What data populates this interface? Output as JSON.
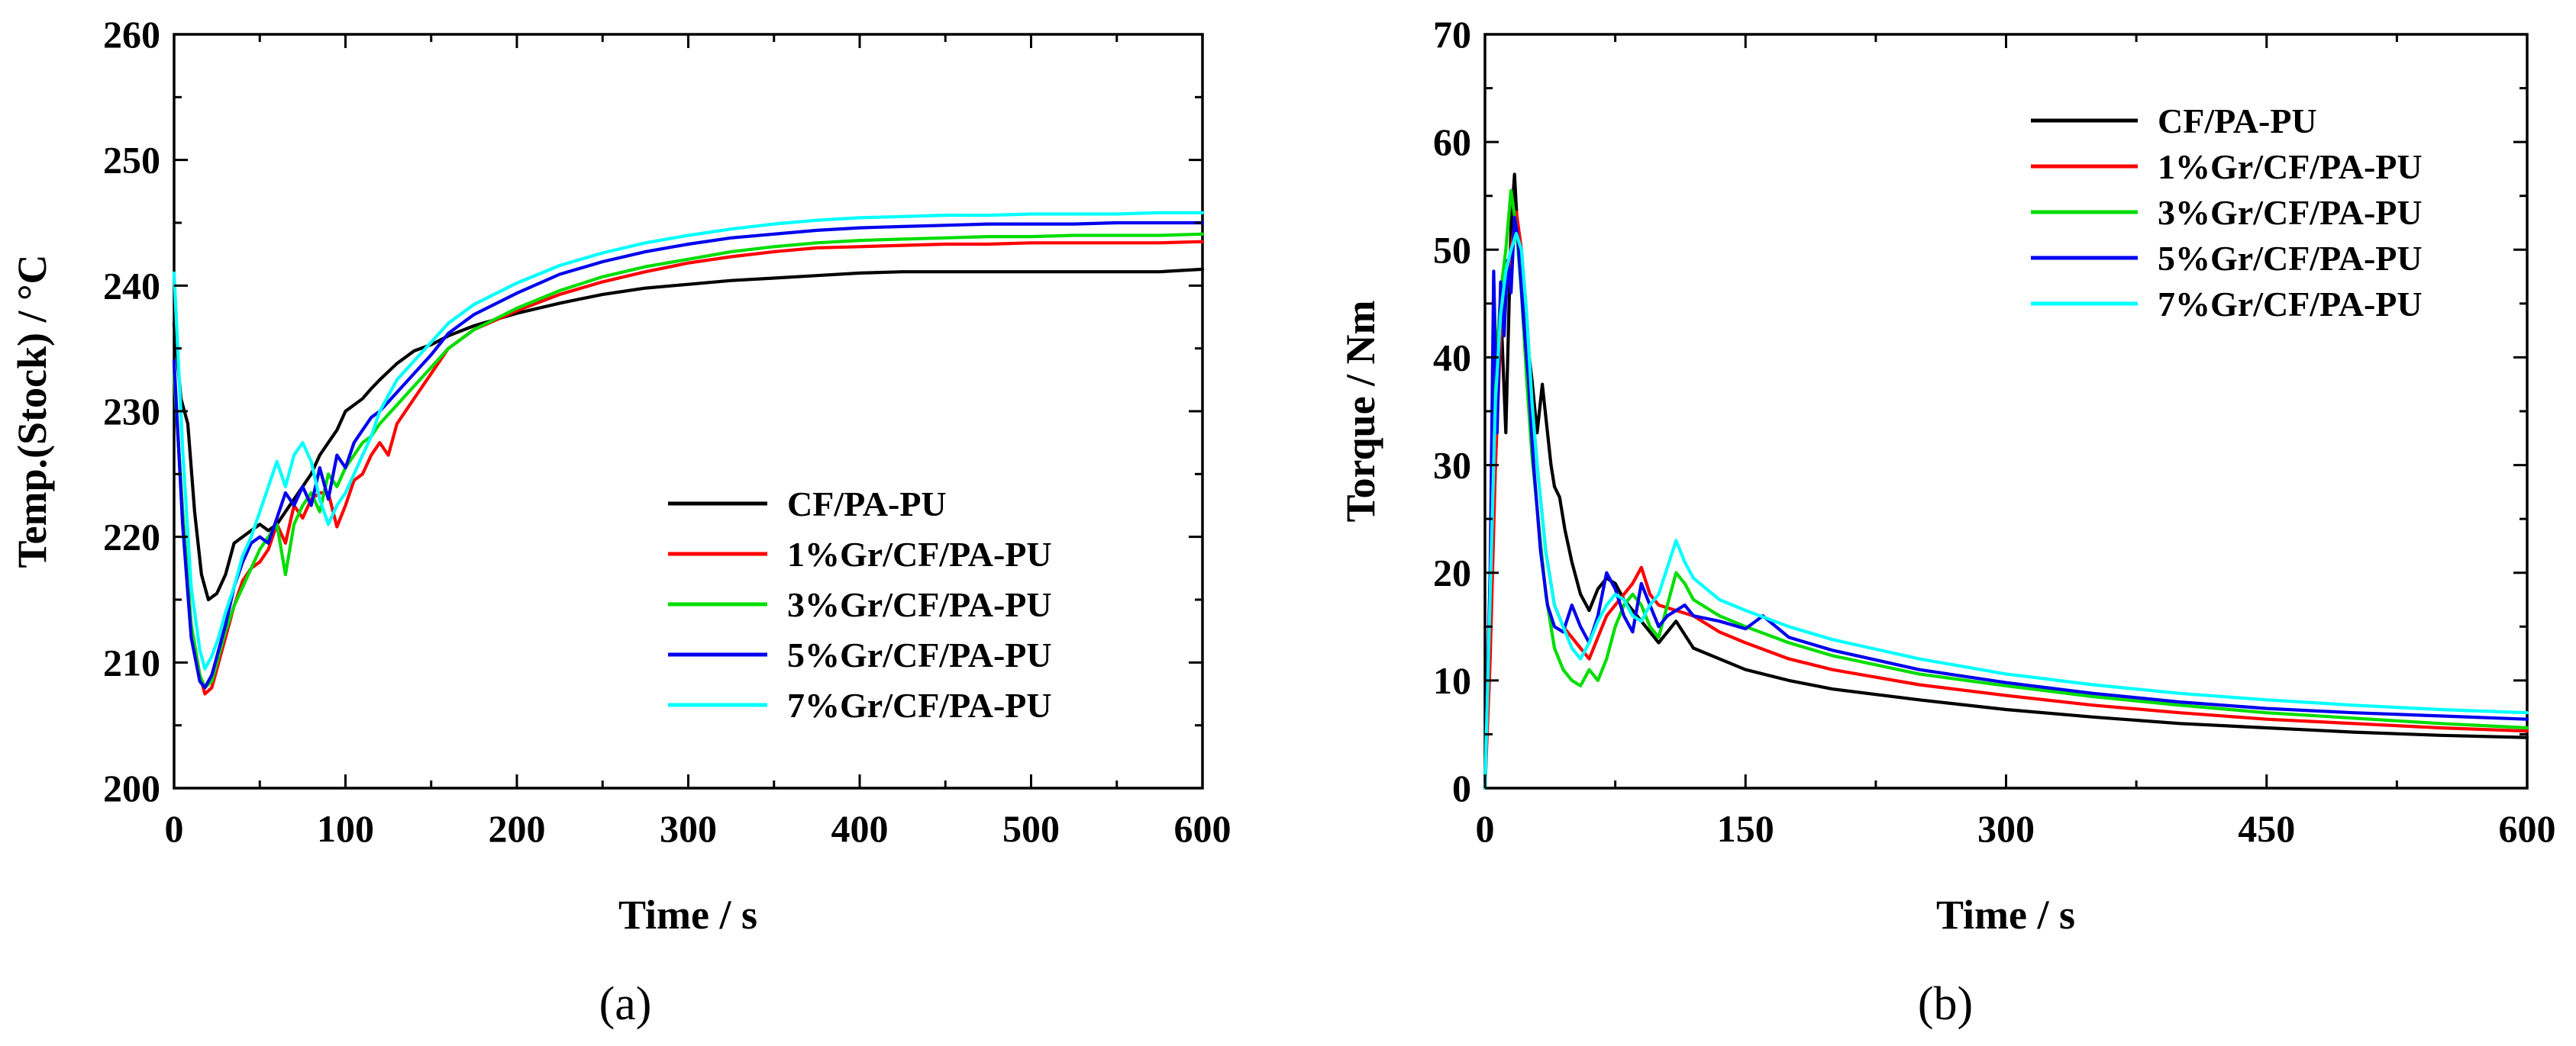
{
  "chart_data": [
    {
      "type": "line",
      "panel_label": "(a)",
      "xlabel": "Time / s",
      "ylabel": "Temp.(Stock) / °C",
      "xlim": [
        0,
        600
      ],
      "ylim": [
        200,
        260
      ],
      "xticks": [
        "0",
        "100",
        "200",
        "300",
        "400",
        "500",
        "600"
      ],
      "yticks": [
        "200",
        "210",
        "220",
        "230",
        "240",
        "250",
        "260"
      ],
      "legend_position": "center-right",
      "series": [
        {
          "name": "CF/PA-PU",
          "color": "#000000",
          "x": [
            0,
            4,
            8,
            12,
            16,
            20,
            25,
            30,
            35,
            40,
            45,
            50,
            55,
            60,
            65,
            70,
            75,
            80,
            85,
            90,
            95,
            100,
            105,
            110,
            115,
            120,
            130,
            140,
            150,
            160,
            175,
            200,
            225,
            250,
            275,
            300,
            325,
            350,
            375,
            400,
            425,
            450,
            475,
            500,
            525,
            550,
            575,
            600
          ],
          "y": [
            237,
            231,
            229,
            222,
            217,
            215,
            215.5,
            217,
            219.5,
            220,
            220.5,
            221,
            220.5,
            221,
            222,
            223,
            224,
            225,
            226.5,
            227.5,
            228.5,
            230,
            230.5,
            231,
            231.8,
            232.5,
            233.8,
            234.8,
            235.3,
            236,
            236.8,
            237.8,
            238.6,
            239.3,
            239.8,
            240.1,
            240.4,
            240.6,
            240.8,
            241,
            241.1,
            241.1,
            241.1,
            241.1,
            241.1,
            241.1,
            241.1,
            241.3
          ]
        },
        {
          "name": "1%Gr/CF/PA-PU",
          "color": "#ff0000",
          "x": [
            0,
            5,
            10,
            15,
            18,
            22,
            26,
            30,
            35,
            40,
            45,
            50,
            55,
            60,
            65,
            70,
            75,
            80,
            85,
            90,
            95,
            100,
            105,
            110,
            115,
            120,
            125,
            130,
            140,
            150,
            160,
            175,
            200,
            225,
            250,
            275,
            300,
            325,
            350,
            375,
            400,
            425,
            450,
            475,
            500,
            525,
            550,
            575,
            600
          ],
          "y": [
            233,
            222,
            213,
            209,
            207.5,
            208,
            210,
            212,
            214.5,
            216.5,
            217.5,
            218,
            219,
            221,
            219.5,
            222.5,
            221.5,
            223,
            223.5,
            223.5,
            220.8,
            222.5,
            224.5,
            225,
            226.5,
            227.5,
            226.5,
            229,
            231,
            233,
            235,
            236.5,
            238,
            239.3,
            240.3,
            241.1,
            241.8,
            242.3,
            242.7,
            243,
            243.1,
            243.2,
            243.3,
            243.3,
            243.4,
            243.4,
            243.4,
            243.4,
            243.5
          ]
        },
        {
          "name": "3%Gr/CF/PA-PU",
          "color": "#00dd00",
          "x": [
            0,
            5,
            10,
            15,
            18,
            22,
            26,
            30,
            35,
            40,
            45,
            50,
            55,
            60,
            65,
            70,
            75,
            80,
            85,
            90,
            95,
            100,
            105,
            110,
            115,
            120,
            130,
            140,
            150,
            160,
            175,
            200,
            225,
            250,
            275,
            300,
            325,
            350,
            375,
            400,
            425,
            450,
            475,
            500,
            525,
            550,
            575,
            600
          ],
          "y": [
            233,
            222,
            213,
            209,
            208,
            208.5,
            210.5,
            212.5,
            214.5,
            216,
            217.5,
            219,
            220,
            221,
            217,
            221,
            222.5,
            223.5,
            222,
            225,
            224,
            225.5,
            226.5,
            227.5,
            228,
            229,
            230.5,
            232,
            233.5,
            235,
            236.5,
            238.2,
            239.6,
            240.7,
            241.5,
            242.1,
            242.7,
            243.1,
            243.4,
            243.6,
            243.7,
            243.8,
            243.9,
            243.9,
            244,
            244,
            244,
            244.1
          ]
        },
        {
          "name": "5%Gr/CF/PA-PU",
          "color": "#0000ee",
          "x": [
            0,
            5,
            10,
            15,
            18,
            22,
            26,
            30,
            35,
            40,
            45,
            50,
            55,
            60,
            65,
            70,
            75,
            80,
            85,
            90,
            95,
            100,
            105,
            110,
            115,
            120,
            130,
            140,
            150,
            160,
            175,
            200,
            225,
            250,
            275,
            300,
            325,
            350,
            375,
            400,
            425,
            450,
            475,
            500,
            525,
            550,
            575,
            600
          ],
          "y": [
            234,
            221,
            212,
            208.5,
            208,
            209,
            211,
            213,
            216,
            218,
            219.5,
            220,
            219.5,
            221.5,
            223.5,
            222.5,
            224,
            222.5,
            225.5,
            223,
            226.5,
            225.5,
            227.5,
            228.5,
            229.5,
            230,
            231.5,
            233,
            234.5,
            236.2,
            237.7,
            239.4,
            240.9,
            241.9,
            242.7,
            243.3,
            243.8,
            244.1,
            244.4,
            244.6,
            244.7,
            244.8,
            244.9,
            244.9,
            244.9,
            245,
            245,
            245
          ]
        },
        {
          "name": "7%Gr/CF/PA-PU",
          "color": "#00ffff",
          "x": [
            0,
            5,
            10,
            15,
            18,
            22,
            26,
            30,
            35,
            40,
            45,
            50,
            55,
            60,
            65,
            70,
            75,
            80,
            85,
            90,
            95,
            100,
            105,
            110,
            115,
            120,
            130,
            140,
            150,
            160,
            175,
            200,
            225,
            250,
            275,
            300,
            325,
            350,
            375,
            400,
            425,
            450,
            475,
            500,
            525,
            550,
            575,
            600
          ],
          "y": [
            241,
            227,
            216,
            211,
            209.5,
            210.5,
            212,
            214,
            216,
            218.5,
            220,
            222,
            224,
            226,
            224,
            226.5,
            227.5,
            226,
            223,
            221,
            222.5,
            223.5,
            225,
            226.5,
            228,
            230,
            232.5,
            234,
            235.5,
            237,
            238.5,
            240.2,
            241.6,
            242.6,
            243.4,
            244,
            244.5,
            244.9,
            245.2,
            245.4,
            245.5,
            245.6,
            245.6,
            245.7,
            245.7,
            245.7,
            245.8,
            245.8
          ]
        }
      ]
    },
    {
      "type": "line",
      "panel_label": "(b)",
      "xlabel": "Time / s",
      "ylabel": "Torque / Nm",
      "xlim": [
        0,
        600
      ],
      "ylim": [
        0,
        70
      ],
      "xticks": [
        "0",
        "150",
        "300",
        "450",
        "600"
      ],
      "yticks": [
        "0",
        "10",
        "20",
        "30",
        "40",
        "50",
        "60",
        "70"
      ],
      "legend_position": "top-right",
      "series": [
        {
          "name": "CF/PA-PU",
          "color": "#000000",
          "x": [
            0,
            3,
            6,
            9,
            12,
            15,
            17,
            19,
            21,
            24,
            27,
            30,
            33,
            36,
            38,
            40,
            43,
            46,
            50,
            55,
            60,
            65,
            70,
            75,
            80,
            85,
            90,
            95,
            100,
            110,
            120,
            135,
            150,
            175,
            200,
            250,
            300,
            350,
            400,
            450,
            500,
            550,
            600
          ],
          "y": [
            0,
            15,
            30,
            45,
            33,
            52,
            57,
            51,
            47,
            42,
            38,
            33,
            37.5,
            33,
            30,
            28,
            27,
            24,
            21,
            18,
            16.5,
            18.5,
            19.5,
            19,
            17.5,
            16.5,
            15.5,
            14.5,
            13.5,
            15.5,
            13,
            12,
            11,
            10,
            9.2,
            8.2,
            7.3,
            6.6,
            6,
            5.6,
            5.2,
            4.9,
            4.7
          ]
        },
        {
          "name": "1%Gr/CF/PA-PU",
          "color": "#ff0000",
          "x": [
            0,
            3,
            6,
            9,
            12,
            15,
            18,
            21,
            24,
            27,
            30,
            35,
            40,
            45,
            50,
            55,
            60,
            65,
            70,
            75,
            80,
            85,
            90,
            95,
            100,
            110,
            120,
            135,
            150,
            175,
            200,
            250,
            300,
            350,
            400,
            450,
            500,
            550,
            600
          ],
          "y": [
            0,
            12,
            30,
            42,
            46,
            50,
            53.5,
            50,
            44,
            36,
            30,
            22,
            17,
            15,
            14,
            13,
            12,
            14,
            16,
            17,
            18,
            19,
            20.5,
            18,
            17,
            16.5,
            16,
            14.5,
            13.5,
            12,
            11,
            9.6,
            8.6,
            7.7,
            7,
            6.4,
            6,
            5.6,
            5.3
          ]
        },
        {
          "name": "3%Gr/CF/PA-PU",
          "color": "#00dd00",
          "x": [
            0,
            3,
            6,
            9,
            12,
            15,
            18,
            21,
            24,
            27,
            30,
            35,
            40,
            45,
            50,
            55,
            60,
            65,
            70,
            75,
            80,
            85,
            90,
            95,
            100,
            105,
            110,
            115,
            120,
            135,
            150,
            175,
            200,
            250,
            300,
            350,
            400,
            450,
            500,
            550,
            600
          ],
          "y": [
            0,
            20,
            38,
            46,
            50,
            55.5,
            52,
            46,
            38,
            31,
            26,
            18,
            13,
            11,
            10,
            9.5,
            11,
            10,
            12,
            15,
            17,
            18,
            17,
            15,
            14,
            17,
            20,
            19,
            17.5,
            16,
            15,
            13.5,
            12.3,
            10.6,
            9.5,
            8.5,
            7.7,
            7,
            6.5,
            6,
            5.6
          ]
        },
        {
          "name": "5%Gr/CF/PA-PU",
          "color": "#0000ee",
          "x": [
            0,
            3,
            5,
            7,
            9,
            11,
            13,
            15,
            17,
            19,
            22,
            25,
            28,
            32,
            36,
            40,
            45,
            50,
            55,
            60,
            65,
            70,
            75,
            80,
            85,
            90,
            95,
            100,
            105,
            110,
            115,
            120,
            135,
            150,
            160,
            175,
            200,
            250,
            300,
            350,
            400,
            450,
            500,
            550,
            600
          ],
          "y": [
            0,
            20,
            48,
            33,
            47,
            42,
            49,
            46,
            53,
            51,
            44,
            38,
            30,
            22,
            17,
            15,
            14.5,
            17,
            15,
            13.5,
            16,
            20,
            18.5,
            16,
            14.5,
            19,
            17,
            15,
            16,
            16.5,
            17,
            16,
            15.5,
            14.8,
            16,
            14,
            12.8,
            11,
            9.8,
            8.8,
            8,
            7.4,
            7,
            6.7,
            6.4
          ]
        },
        {
          "name": "7%Gr/CF/PA-PU",
          "color": "#00ffff",
          "x": [
            0,
            3,
            6,
            9,
            12,
            15,
            18,
            21,
            24,
            27,
            30,
            35,
            40,
            45,
            50,
            55,
            60,
            65,
            70,
            75,
            80,
            85,
            90,
            95,
            100,
            105,
            110,
            115,
            120,
            135,
            150,
            175,
            200,
            250,
            300,
            350,
            400,
            450,
            500,
            550,
            600
          ],
          "y": [
            0,
            18,
            36,
            44,
            48,
            50,
            51.5,
            50,
            44,
            36,
            30,
            22,
            17,
            15,
            13,
            12,
            13.5,
            15.5,
            17,
            18,
            17.5,
            16,
            15.5,
            17,
            18,
            20.5,
            23,
            21,
            19.5,
            17.5,
            16.5,
            15,
            13.8,
            12,
            10.6,
            9.6,
            8.8,
            8.2,
            7.7,
            7.3,
            7
          ]
        }
      ]
    }
  ]
}
